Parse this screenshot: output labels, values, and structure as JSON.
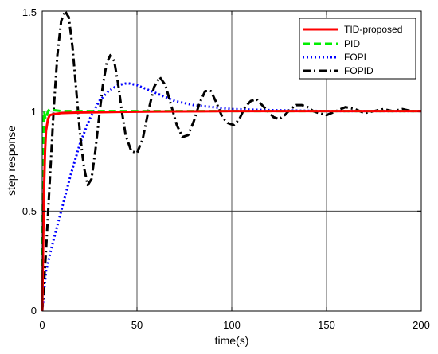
{
  "chart_data": {
    "type": "line",
    "xlabel": "time(s)",
    "ylabel": "step response",
    "xlim": [
      0,
      200
    ],
    "ylim": [
      0,
      1.5
    ],
    "x_ticks": [
      "0",
      "50",
      "100",
      "150",
      "200"
    ],
    "y_ticks": [
      "0",
      "0.5",
      "1",
      "1.5"
    ],
    "grid": true,
    "legend_position": "top-right",
    "series": [
      {
        "name": "TID-proposed",
        "color": "#ff0000",
        "style": "solid",
        "points": [
          [
            0,
            0
          ],
          [
            0.5,
            0.35
          ],
          [
            1,
            0.62
          ],
          [
            1.5,
            0.8
          ],
          [
            2,
            0.9
          ],
          [
            3,
            0.96
          ],
          [
            4,
            0.98
          ],
          [
            6,
            0.985
          ],
          [
            10,
            0.99
          ],
          [
            20,
            0.993
          ],
          [
            40,
            0.996
          ],
          [
            60,
            0.998
          ],
          [
            100,
            1.0
          ],
          [
            150,
            1.0
          ],
          [
            200,
            1.0
          ]
        ]
      },
      {
        "name": "PID",
        "color": "#00ee00",
        "style": "dash",
        "points": [
          [
            0,
            0
          ],
          [
            0.3,
            0.5
          ],
          [
            0.6,
            0.9
          ],
          [
            1,
            1.0
          ],
          [
            1.5,
            0.97
          ],
          [
            2,
            0.96
          ],
          [
            3,
            1.0
          ],
          [
            4,
            1.01
          ],
          [
            6,
            1.005
          ],
          [
            10,
            1.0
          ],
          [
            50,
            1.0
          ],
          [
            100,
            1.0
          ],
          [
            150,
            1.0
          ],
          [
            200,
            1.0
          ]
        ]
      },
      {
        "name": "FOPI",
        "color": "#0000ff",
        "style": "dot",
        "points": [
          [
            0,
            0
          ],
          [
            2,
            0.2
          ],
          [
            5,
            0.32
          ],
          [
            10,
            0.5
          ],
          [
            15,
            0.68
          ],
          [
            20,
            0.84
          ],
          [
            25,
            0.96
          ],
          [
            30,
            1.05
          ],
          [
            35,
            1.1
          ],
          [
            40,
            1.13
          ],
          [
            45,
            1.14
          ],
          [
            50,
            1.13
          ],
          [
            55,
            1.11
          ],
          [
            60,
            1.09
          ],
          [
            70,
            1.05
          ],
          [
            80,
            1.03
          ],
          [
            90,
            1.02
          ],
          [
            100,
            1.01
          ],
          [
            120,
            1.005
          ],
          [
            150,
            1.0
          ],
          [
            200,
            1.0
          ]
        ]
      },
      {
        "name": "FOPID",
        "color": "#000000",
        "style": "dashdot",
        "points": [
          [
            0,
            0
          ],
          [
            2,
            0.3
          ],
          [
            4,
            0.65
          ],
          [
            6,
            1.0
          ],
          [
            8,
            1.28
          ],
          [
            10,
            1.45
          ],
          [
            12,
            1.5
          ],
          [
            14,
            1.47
          ],
          [
            16,
            1.32
          ],
          [
            18,
            1.1
          ],
          [
            20,
            0.88
          ],
          [
            22,
            0.72
          ],
          [
            24,
            0.63
          ],
          [
            26,
            0.66
          ],
          [
            28,
            0.8
          ],
          [
            30,
            0.97
          ],
          [
            32,
            1.13
          ],
          [
            34,
            1.24
          ],
          [
            36,
            1.28
          ],
          [
            38,
            1.25
          ],
          [
            40,
            1.14
          ],
          [
            42,
            1.0
          ],
          [
            44,
            0.88
          ],
          [
            47,
            0.8
          ],
          [
            50,
            0.79
          ],
          [
            53,
            0.86
          ],
          [
            56,
            1.0
          ],
          [
            59,
            1.12
          ],
          [
            62,
            1.17
          ],
          [
            65,
            1.13
          ],
          [
            68,
            1.03
          ],
          [
            71,
            0.93
          ],
          [
            74,
            0.87
          ],
          [
            77,
            0.88
          ],
          [
            80,
            0.95
          ],
          [
            83,
            1.04
          ],
          [
            86,
            1.1
          ],
          [
            89,
            1.1
          ],
          [
            92,
            1.04
          ],
          [
            95,
            0.97
          ],
          [
            98,
            0.94
          ],
          [
            101,
            0.93
          ],
          [
            104,
            0.96
          ],
          [
            107,
            1.02
          ],
          [
            110,
            1.05
          ],
          [
            113,
            1.06
          ],
          [
            116,
            1.03
          ],
          [
            119,
            1.0
          ],
          [
            122,
            0.97
          ],
          [
            125,
            0.96
          ],
          [
            128,
            0.98
          ],
          [
            131,
            1.01
          ],
          [
            134,
            1.03
          ],
          [
            137,
            1.03
          ],
          [
            140,
            1.02
          ],
          [
            143,
            1.0
          ],
          [
            146,
            0.99
          ],
          [
            150,
            0.98
          ],
          [
            155,
            1.0
          ],
          [
            160,
            1.02
          ],
          [
            165,
            1.01
          ],
          [
            170,
            0.99
          ],
          [
            175,
            1.0
          ],
          [
            180,
            1.01
          ],
          [
            185,
            1.0
          ],
          [
            190,
            1.01
          ],
          [
            195,
            1.0
          ],
          [
            200,
            1.0
          ]
        ]
      }
    ]
  }
}
